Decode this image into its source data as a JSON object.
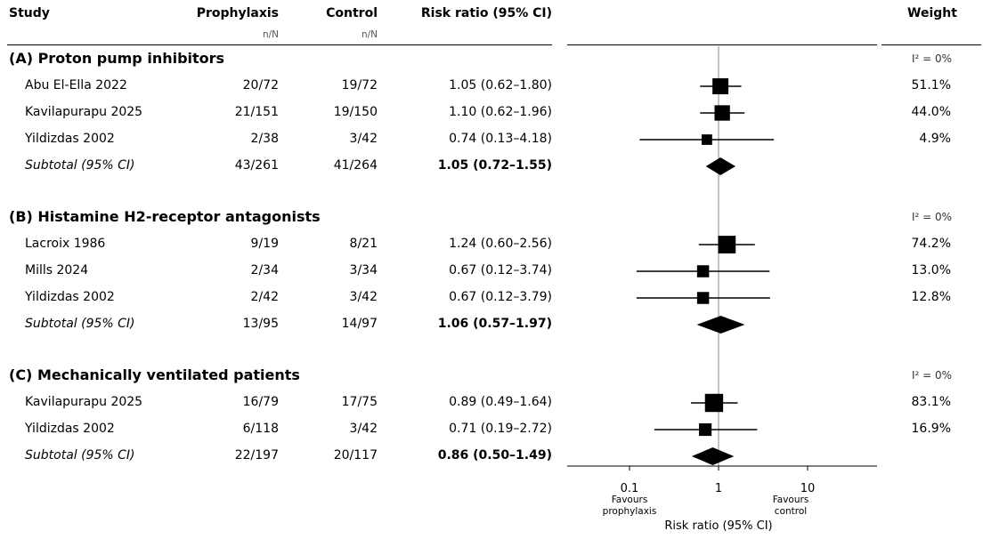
{
  "headers": {
    "study": "Study",
    "prophylaxis": "Prophylaxis",
    "control": "Control",
    "rr": "Risk ratio (95% CI)",
    "weight": "Weight",
    "n_prophylaxis": "n/N",
    "n_control": "n/N"
  },
  "chart_data": {
    "type": "forest",
    "scale": "log",
    "xlim": [
      0.1,
      10
    ],
    "xticks": [
      "0.1",
      "1",
      "10"
    ],
    "xlabel": "Risk ratio (95% CI)",
    "favours_left": "Favours\nprophylaxis",
    "favours_right": "Favours\ncontrol",
    "groups": [
      {
        "title": "(A) Proton pump inhibitors",
        "i2": "I² = 0%",
        "studies": [
          {
            "name": "Abu El-Ella 2022",
            "prophylaxis": "20/72",
            "control": "19/72",
            "rr_text": "1.05 (0.62–1.80)",
            "rr": 1.05,
            "lo": 0.62,
            "hi": 1.8,
            "weight": "51.1%",
            "w": 51.1
          },
          {
            "name": "Kavilapurapu 2025",
            "prophylaxis": "21/151",
            "control": "19/150",
            "rr_text": "1.10 (0.62–1.96)",
            "rr": 1.1,
            "lo": 0.62,
            "hi": 1.96,
            "weight": "44.0%",
            "w": 44.0
          },
          {
            "name": "Yildizdas 2002",
            "prophylaxis": "2/38",
            "control": "3/42",
            "rr_text": "0.74 (0.13–4.18)",
            "rr": 0.74,
            "lo": 0.13,
            "hi": 4.18,
            "weight": "4.9%",
            "w": 4.9
          }
        ],
        "subtotal": {
          "label": "Subtotal (95% CI)",
          "prophylaxis": "43/261",
          "control": "41/264",
          "rr_text": "1.05 (0.72–1.55)",
          "rr": 1.05,
          "lo": 0.72,
          "hi": 1.55
        }
      },
      {
        "title": "(B) Histamine H2-receptor antagonists",
        "i2": "I² = 0%",
        "studies": [
          {
            "name": "Lacroix 1986",
            "prophylaxis": "9/19",
            "control": "8/21",
            "rr_text": "1.24 (0.60–2.56)",
            "rr": 1.24,
            "lo": 0.6,
            "hi": 2.56,
            "weight": "74.2%",
            "w": 74.2
          },
          {
            "name": "Mills 2024",
            "prophylaxis": "2/34",
            "control": "3/34",
            "rr_text": "0.67 (0.12–3.74)",
            "rr": 0.67,
            "lo": 0.12,
            "hi": 3.74,
            "weight": "13.0%",
            "w": 13.0
          },
          {
            "name": "Yildizdas 2002",
            "prophylaxis": "2/42",
            "control": "3/42",
            "rr_text": "0.67 (0.12–3.79)",
            "rr": 0.67,
            "lo": 0.12,
            "hi": 3.79,
            "weight": "12.8%",
            "w": 12.8
          }
        ],
        "subtotal": {
          "label": "Subtotal (95% CI)",
          "prophylaxis": "13/95",
          "control": "14/97",
          "rr_text": "1.06 (0.57–1.97)",
          "rr": 1.06,
          "lo": 0.57,
          "hi": 1.97
        }
      },
      {
        "title": "(C) Mechanically ventilated patients",
        "i2": "I² = 0%",
        "studies": [
          {
            "name": "Kavilapurapu 2025",
            "prophylaxis": "16/79",
            "control": "17/75",
            "rr_text": "0.89 (0.49–1.64)",
            "rr": 0.89,
            "lo": 0.49,
            "hi": 1.64,
            "weight": "83.1%",
            "w": 83.1
          },
          {
            "name": "Yildizdas 2002",
            "prophylaxis": "6/118",
            "control": "3/42",
            "rr_text": "0.71 (0.19–2.72)",
            "rr": 0.71,
            "lo": 0.19,
            "hi": 2.72,
            "weight": "16.9%",
            "w": 16.9
          }
        ],
        "subtotal": {
          "label": "Subtotal (95% CI)",
          "prophylaxis": "22/197",
          "control": "20/117",
          "rr_text": "0.86 (0.50–1.49)",
          "rr": 0.86,
          "lo": 0.5,
          "hi": 1.49
        }
      }
    ]
  }
}
